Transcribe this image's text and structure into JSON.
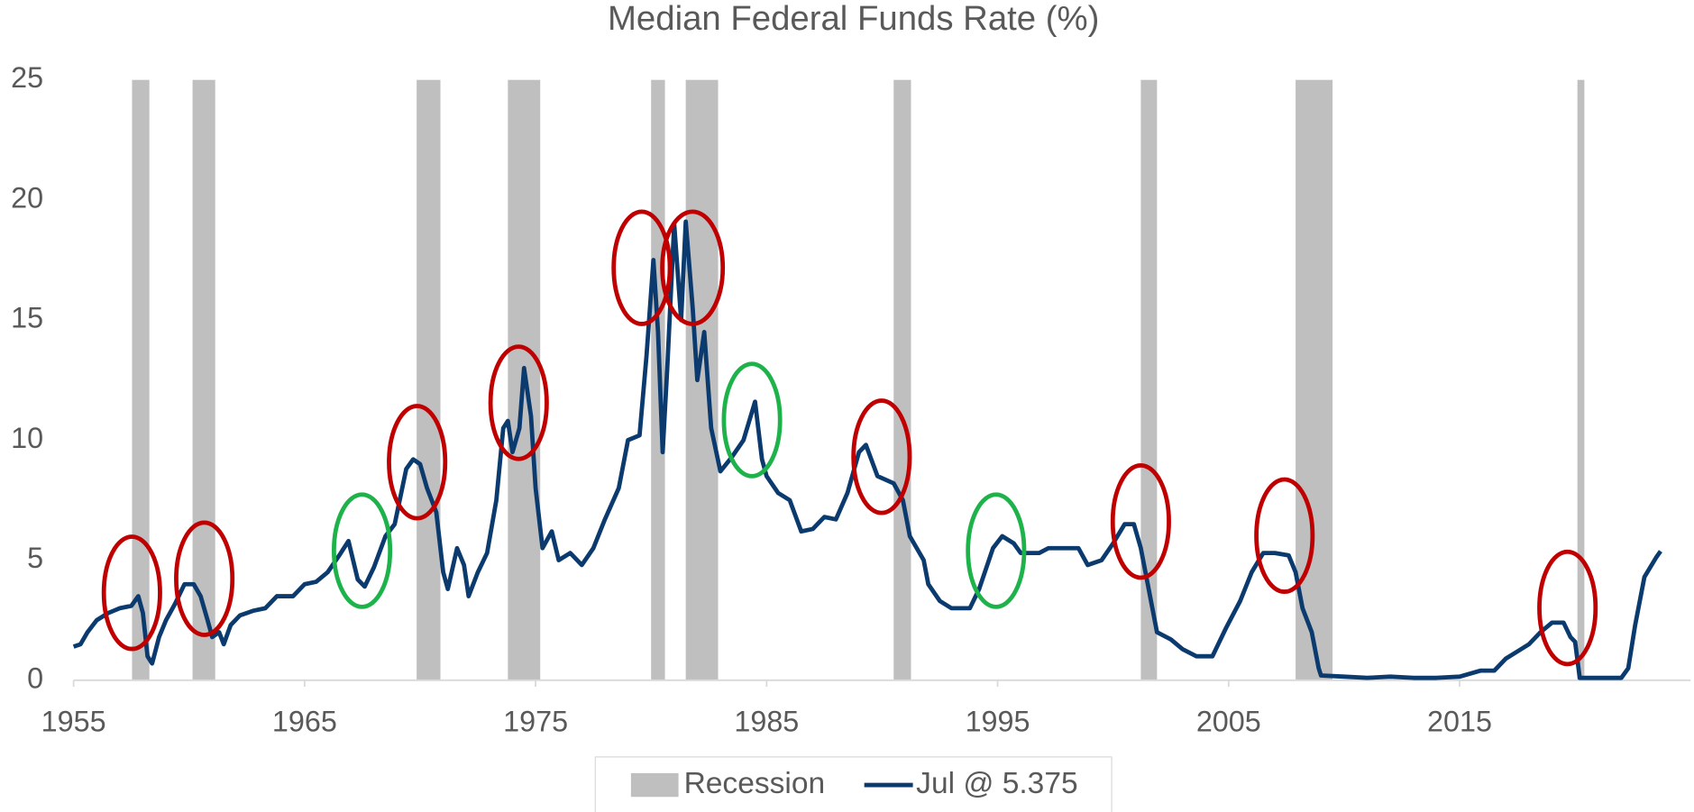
{
  "chart_data": {
    "type": "line",
    "title": "Median Federal Funds Rate (%)",
    "xlim": [
      1955,
      2025
    ],
    "xticks": [
      1955,
      1965,
      1975,
      1985,
      1995,
      2005,
      2015
    ],
    "ylim": [
      0,
      25
    ],
    "yticks": [
      0,
      5,
      10,
      15,
      20,
      25
    ],
    "legend": "bottom",
    "series": [
      {
        "name": "Recession",
        "color": "#bfbfbf",
        "ranges": [
          [
            1957.53,
            1958.28
          ],
          [
            1960.15,
            1961.13
          ],
          [
            1969.85,
            1970.88
          ],
          [
            1973.8,
            1975.2
          ],
          [
            1980.0,
            1980.6
          ],
          [
            1981.5,
            1982.9
          ],
          [
            1990.5,
            1991.25
          ],
          [
            2001.2,
            2001.9
          ],
          [
            2007.9,
            2009.5
          ],
          [
            2020.1,
            2020.4
          ]
        ]
      },
      {
        "name": "Jul @ 5.375",
        "color": "#0b3a6e",
        "x": [
          1955.0,
          1955.3,
          1955.6,
          1956,
          1956.5,
          1957,
          1957.5,
          1957.8,
          1958.0,
          1958.2,
          1958.4,
          1958.7,
          1959.0,
          1959.4,
          1959.8,
          1960.2,
          1960.5,
          1960.8,
          1961.0,
          1961.3,
          1961.5,
          1961.8,
          1962.2,
          1962.8,
          1963.3,
          1963.8,
          1964.5,
          1965.0,
          1965.5,
          1966.0,
          1966.5,
          1966.9,
          1967.3,
          1967.6,
          1968.0,
          1968.5,
          1968.9,
          1969.4,
          1969.7,
          1970.0,
          1970.3,
          1970.7,
          1971.0,
          1971.2,
          1971.6,
          1971.9,
          1972.1,
          1972.5,
          1972.9,
          1973.3,
          1973.6,
          1973.8,
          1974.0,
          1974.3,
          1974.5,
          1974.8,
          1975.0,
          1975.3,
          1975.7,
          1976.0,
          1976.5,
          1977.0,
          1977.5,
          1978.0,
          1978.6,
          1979.0,
          1979.5,
          1979.8,
          1980.1,
          1980.3,
          1980.5,
          1980.7,
          1981.0,
          1981.3,
          1981.5,
          1981.8,
          1982.0,
          1982.3,
          1982.6,
          1983.0,
          1983.5,
          1984.0,
          1984.5,
          1984.8,
          1985.0,
          1985.5,
          1986.0,
          1986.5,
          1987.0,
          1987.5,
          1988.0,
          1988.5,
          1989.0,
          1989.3,
          1989.8,
          1990.5,
          1990.9,
          1991.2,
          1991.8,
          1992.0,
          1992.5,
          1993.0,
          1993.8,
          1994.2,
          1994.8,
          1995.2,
          1995.7,
          1996.0,
          1996.8,
          1997.2,
          1998.0,
          1998.5,
          1998.9,
          1999.5,
          2000.0,
          2000.5,
          2000.9,
          2001.2,
          2001.6,
          2001.9,
          2002.5,
          2003.0,
          2003.6,
          2004.3,
          2004.9,
          2005.5,
          2006.0,
          2006.5,
          2007.0,
          2007.6,
          2007.9,
          2008.2,
          2008.6,
          2008.9,
          2009.0,
          2010,
          2011,
          2012,
          2013,
          2014,
          2015,
          2015.9,
          2016.5,
          2017.0,
          2017.5,
          2018.0,
          2018.5,
          2019.0,
          2019.5,
          2019.8,
          2020.0,
          2020.2,
          2021,
          2022.0,
          2022.3,
          2022.6,
          2023.0,
          2023.5,
          2023.7
        ],
        "values": [
          1.4,
          1.5,
          2.0,
          2.5,
          2.8,
          3.0,
          3.1,
          3.5,
          2.8,
          1.0,
          0.7,
          1.8,
          2.5,
          3.2,
          4.0,
          4.0,
          3.5,
          2.5,
          1.8,
          2.0,
          1.5,
          2.3,
          2.7,
          2.9,
          3.0,
          3.5,
          3.5,
          4.0,
          4.1,
          4.5,
          5.2,
          5.8,
          4.2,
          3.9,
          4.7,
          6.0,
          6.5,
          8.8,
          9.2,
          9.0,
          8.0,
          7.0,
          4.5,
          3.8,
          5.5,
          4.8,
          3.5,
          4.5,
          5.3,
          7.5,
          10.5,
          10.8,
          9.5,
          10.5,
          13.0,
          11.0,
          8.0,
          5.5,
          6.2,
          5.0,
          5.3,
          4.8,
          5.5,
          6.7,
          8.0,
          10.0,
          10.2,
          13.5,
          17.5,
          14.5,
          9.5,
          13.0,
          19.0,
          15.0,
          19.1,
          15.5,
          12.5,
          14.5,
          10.5,
          8.7,
          9.3,
          10.0,
          11.6,
          9.2,
          8.5,
          7.8,
          7.5,
          6.2,
          6.3,
          6.8,
          6.7,
          7.8,
          9.5,
          9.8,
          8.5,
          8.2,
          7.5,
          6.0,
          5.0,
          4.0,
          3.3,
          3.0,
          3.0,
          3.8,
          5.5,
          6.0,
          5.7,
          5.3,
          5.3,
          5.5,
          5.5,
          5.5,
          4.8,
          5.0,
          5.7,
          6.5,
          6.5,
          5.5,
          3.5,
          2.0,
          1.7,
          1.3,
          1.0,
          1.0,
          2.2,
          3.3,
          4.5,
          5.3,
          5.3,
          5.2,
          4.5,
          3.0,
          2.0,
          0.5,
          0.2,
          0.15,
          0.1,
          0.15,
          0.1,
          0.1,
          0.15,
          0.4,
          0.4,
          0.9,
          1.2,
          1.5,
          2.0,
          2.4,
          2.4,
          1.8,
          1.6,
          0.1,
          0.1,
          0.1,
          0.5,
          2.3,
          4.3,
          5.1,
          5.375
        ]
      }
    ]
  }
}
